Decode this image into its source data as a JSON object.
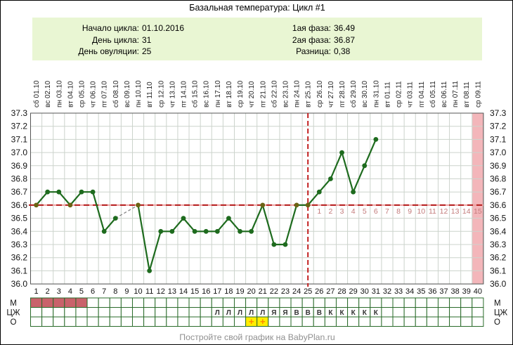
{
  "title": "Базальная температура: Цикл #1",
  "info": {
    "items_left": [
      {
        "label": "Начало цикла:",
        "value": "01.10.2016"
      },
      {
        "label": "День цикла:",
        "value": "31"
      },
      {
        "label": "День овуляции:",
        "value": "25"
      }
    ],
    "items_right": [
      {
        "label": "1ая фаза:",
        "value": "36.49"
      },
      {
        "label": "2ая фаза:",
        "value": "36.87"
      },
      {
        "label": "Разница:",
        "value": "0,38"
      }
    ]
  },
  "footer": "Постройте свой график на BabyPlan.ru",
  "chart_data": {
    "type": "line",
    "title": "Базальная температура: Цикл #1",
    "ylim": [
      36.0,
      37.3
    ],
    "ytick_step": 0.1,
    "x_days_total": 40,
    "coverline": 36.6,
    "ovulation_day": 25,
    "phase1_avg": 36.49,
    "phase2_avg": 36.87,
    "phase_difference": "0,38",
    "dpo_start_day": 26,
    "dpo_count": 15,
    "menstruation_days": [
      1,
      2,
      3,
      4,
      5
    ],
    "opk_positive_days": [
      20,
      21
    ],
    "highlight_day": 40,
    "row_labels": [
      "М",
      "ЦЖ",
      "О"
    ],
    "days": [
      {
        "day": 1,
        "dow": "сб",
        "date": "01.10",
        "temp": 36.6,
        "cf": ""
      },
      {
        "day": 2,
        "dow": "вс",
        "date": "02.10",
        "temp": 36.7,
        "cf": ""
      },
      {
        "day": 3,
        "dow": "пн",
        "date": "03.10",
        "temp": 36.7,
        "cf": ""
      },
      {
        "day": 4,
        "dow": "вт",
        "date": "04.10",
        "temp": 36.6,
        "cf": ""
      },
      {
        "day": 5,
        "dow": "ср",
        "date": "05.10",
        "temp": 36.7,
        "cf": ""
      },
      {
        "day": 6,
        "dow": "чт",
        "date": "06.10",
        "temp": 36.7,
        "cf": ""
      },
      {
        "day": 7,
        "dow": "пт",
        "date": "07.10",
        "temp": 36.4,
        "cf": ""
      },
      {
        "day": 8,
        "dow": "сб",
        "date": "08.10",
        "temp": 36.5,
        "cf": ""
      },
      {
        "day": 9,
        "dow": "вс",
        "date": "09.10",
        "temp": null,
        "cf": ""
      },
      {
        "day": 10,
        "dow": "пн",
        "date": "10.10",
        "temp": 36.6,
        "cf": ""
      },
      {
        "day": 11,
        "dow": "вт",
        "date": "11.10",
        "temp": 36.1,
        "cf": ""
      },
      {
        "day": 12,
        "dow": "ср",
        "date": "12.10",
        "temp": 36.4,
        "cf": ""
      },
      {
        "day": 13,
        "dow": "чт",
        "date": "13.10",
        "temp": 36.4,
        "cf": ""
      },
      {
        "day": 14,
        "dow": "пт",
        "date": "14.10",
        "temp": 36.5,
        "cf": ""
      },
      {
        "day": 15,
        "dow": "сб",
        "date": "15.10",
        "temp": 36.4,
        "cf": ""
      },
      {
        "day": 16,
        "dow": "вс",
        "date": "16.10",
        "temp": 36.4,
        "cf": ""
      },
      {
        "day": 17,
        "dow": "пн",
        "date": "17.10",
        "temp": 36.4,
        "cf": "Л"
      },
      {
        "day": 18,
        "dow": "вт",
        "date": "18.10",
        "temp": 36.5,
        "cf": "Л"
      },
      {
        "day": 19,
        "dow": "ср",
        "date": "19.10",
        "temp": 36.4,
        "cf": "Л"
      },
      {
        "day": 20,
        "dow": "чт",
        "date": "20.10",
        "temp": 36.4,
        "cf": "Л"
      },
      {
        "day": 21,
        "dow": "пт",
        "date": "21.10",
        "temp": 36.6,
        "cf": "Л"
      },
      {
        "day": 22,
        "dow": "сб",
        "date": "22.10",
        "temp": 36.3,
        "cf": "Я"
      },
      {
        "day": 23,
        "dow": "вс",
        "date": "23.10",
        "temp": 36.3,
        "cf": "Я"
      },
      {
        "day": 24,
        "dow": "пн",
        "date": "24.10",
        "temp": 36.6,
        "cf": "В"
      },
      {
        "day": 25,
        "dow": "вт",
        "date": "25.10",
        "temp": 36.6,
        "cf": "В"
      },
      {
        "day": 26,
        "dow": "ср",
        "date": "26.10",
        "temp": 36.7,
        "cf": "В"
      },
      {
        "day": 27,
        "dow": "чт",
        "date": "27.10",
        "temp": 36.8,
        "cf": "К"
      },
      {
        "day": 28,
        "dow": "пт",
        "date": "28.10",
        "temp": 37.0,
        "cf": "К"
      },
      {
        "day": 29,
        "dow": "сб",
        "date": "29.10",
        "temp": 36.7,
        "cf": "К"
      },
      {
        "day": 30,
        "dow": "вс",
        "date": "30.10",
        "temp": 36.9,
        "cf": "К"
      },
      {
        "day": 31,
        "dow": "пн",
        "date": "31.10",
        "temp": 37.1,
        "cf": "К"
      },
      {
        "day": 32,
        "dow": "вт",
        "date": "01.11",
        "temp": null,
        "cf": ""
      },
      {
        "day": 33,
        "dow": "ср",
        "date": "02.11",
        "temp": null,
        "cf": ""
      },
      {
        "day": 34,
        "dow": "чт",
        "date": "03.11",
        "temp": null,
        "cf": ""
      },
      {
        "day": 35,
        "dow": "пт",
        "date": "04.11",
        "temp": null,
        "cf": ""
      },
      {
        "day": 36,
        "dow": "сб",
        "date": "05.11",
        "temp": null,
        "cf": ""
      },
      {
        "day": 37,
        "dow": "вс",
        "date": "06.11",
        "temp": null,
        "cf": ""
      },
      {
        "day": 38,
        "dow": "пн",
        "date": "07.11",
        "temp": null,
        "cf": ""
      },
      {
        "day": 39,
        "dow": "вт",
        "date": "08.11",
        "temp": null,
        "cf": ""
      },
      {
        "day": 40,
        "dow": "ср",
        "date": "09.11",
        "temp": null,
        "cf": ""
      }
    ],
    "colors": {
      "line": "#1e6b1e",
      "point": "#1e6b1e",
      "point_on_coverline": "#6b6314",
      "coverline": "#b51d1d",
      "coverline_light": "#eda0a0",
      "ovulation_line": "#c22020",
      "dpo_text": "#c37b7b",
      "grid": "#ccd3cc",
      "plot_border": "#555555",
      "axis_text": "#111111",
      "date_text": "#222222",
      "pink_highlight": "#f3b6ba",
      "menstruation_fill": "#c9626b",
      "table_border": "#2a6b2a",
      "cf_text": "#333333",
      "opk_fill": "#ffee00",
      "opk_plus": "#ff8800",
      "panel_bg": "#e9f6d3",
      "footer_text": "#909090"
    }
  }
}
